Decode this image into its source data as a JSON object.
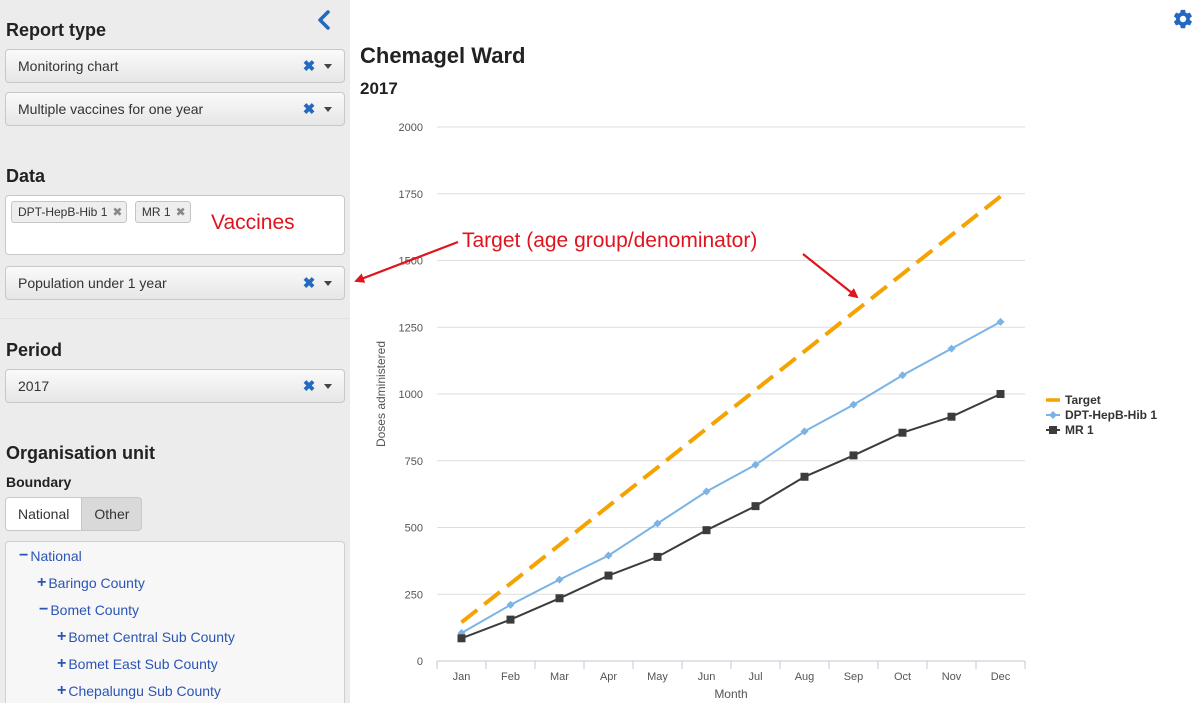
{
  "sidebar": {
    "report_type_title": "Report type",
    "report_type_value": "Monitoring chart",
    "report_subtype_value": "Multiple vaccines for one year",
    "data_title": "Data",
    "data_tags": [
      "DPT-HepB-Hib 1",
      "MR 1"
    ],
    "population_value": "Population under 1 year",
    "period_title": "Period",
    "period_value": "2017",
    "org_unit_title": "Organisation unit",
    "boundary_label": "Boundary",
    "boundary_options": [
      "National",
      "Other"
    ],
    "boundary_selected": "Other",
    "tree": [
      {
        "symbol": "−",
        "label": "National",
        "level": 0
      },
      {
        "symbol": "+",
        "label": "Baringo County",
        "level": 1
      },
      {
        "symbol": "−",
        "label": "Bomet County",
        "level": 1
      },
      {
        "symbol": "+",
        "label": "Bomet Central Sub County",
        "level": 2
      },
      {
        "symbol": "+",
        "label": "Bomet East Sub County",
        "level": 2
      },
      {
        "symbol": "+",
        "label": "Chepalungu Sub County",
        "level": 2
      }
    ]
  },
  "annotations": {
    "vaccines": "Vaccines",
    "target": "Target (age group/denominator)"
  },
  "colors": {
    "annotation": "#e0141e",
    "target": "#f4a300",
    "dpt": "#7ab4e6",
    "mr": "#3c3c3c"
  },
  "icons": {
    "settings": "gear-icon",
    "collapse": "chevron-left-icon",
    "clear": "clear-x-icon",
    "dropdown": "caret-down-icon"
  },
  "chart_title": "Chemagel Ward",
  "chart_subtitle": "2017",
  "chart_data": {
    "type": "line",
    "title": "Chemagel Ward",
    "subtitle": "2017",
    "xlabel": "Month",
    "ylabel": "Doses administered",
    "ylim": [
      0,
      2000
    ],
    "yticks": [
      0,
      250,
      500,
      750,
      1000,
      1250,
      1500,
      1750,
      2000
    ],
    "grid": true,
    "legend_position": "right",
    "categories": [
      "Jan",
      "Feb",
      "Mar",
      "Apr",
      "May",
      "Jun",
      "Jul",
      "Aug",
      "Sep",
      "Oct",
      "Nov",
      "Dec"
    ],
    "series": [
      {
        "name": "Target",
        "style": "dashed",
        "color": "#f4a300",
        "values": [
          145,
          290,
          435,
          580,
          725,
          870,
          1015,
          1160,
          1305,
          1450,
          1595,
          1740
        ]
      },
      {
        "name": "DPT-HepB-Hib 1",
        "style": "diamond",
        "color": "#7ab4e6",
        "values": [
          105,
          210,
          305,
          395,
          515,
          635,
          735,
          860,
          960,
          1070,
          1170,
          1270
        ]
      },
      {
        "name": "MR 1",
        "style": "square",
        "color": "#3c3c3c",
        "values": [
          85,
          155,
          235,
          320,
          390,
          490,
          580,
          690,
          770,
          855,
          915,
          1000
        ]
      }
    ]
  }
}
